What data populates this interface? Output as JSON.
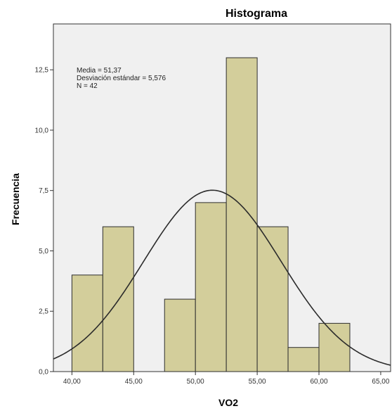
{
  "chart_data": {
    "type": "bar",
    "title": "Histograma",
    "xlabel": "VO2",
    "ylabel": "Frecuencia",
    "bin_width": 2.5,
    "bins": [
      {
        "start": 40.0,
        "end": 42.5,
        "count": 4
      },
      {
        "start": 42.5,
        "end": 45.0,
        "count": 6
      },
      {
        "start": 45.0,
        "end": 47.5,
        "count": 0
      },
      {
        "start": 47.5,
        "end": 50.0,
        "count": 3
      },
      {
        "start": 50.0,
        "end": 52.5,
        "count": 7
      },
      {
        "start": 52.5,
        "end": 55.0,
        "count": 13
      },
      {
        "start": 55.0,
        "end": 57.5,
        "count": 6
      },
      {
        "start": 57.5,
        "end": 60.0,
        "count": 1
      },
      {
        "start": 60.0,
        "end": 62.5,
        "count": 2
      }
    ],
    "xlim": [
      38.5,
      65.8
    ],
    "ylim": [
      0,
      14.4
    ],
    "x_ticks": [
      40,
      45,
      50,
      55,
      60,
      65
    ],
    "x_tick_labels": [
      "40,00",
      "45,00",
      "50,00",
      "55,00",
      "60,00",
      "65,00"
    ],
    "y_ticks": [
      0,
      2.5,
      5.0,
      7.5,
      10.0,
      12.5
    ],
    "y_tick_labels": [
      "0,0",
      "2,5",
      "5,0",
      "7,5",
      "10,0",
      "12,5"
    ],
    "normal_curve": {
      "mean": 51.37,
      "sd": 5.576,
      "n": 42
    },
    "stats_lines": [
      "Media = 51,37",
      "Desviación estándar = 5,576",
      "N = 42"
    ],
    "grid": false,
    "colors": {
      "plot_background": "#f0f0f0",
      "bar_fill": "#d3ce9b",
      "bar_stroke": "#2e2e2e",
      "curve": "#2b2b2b",
      "axis": "#333333"
    }
  }
}
